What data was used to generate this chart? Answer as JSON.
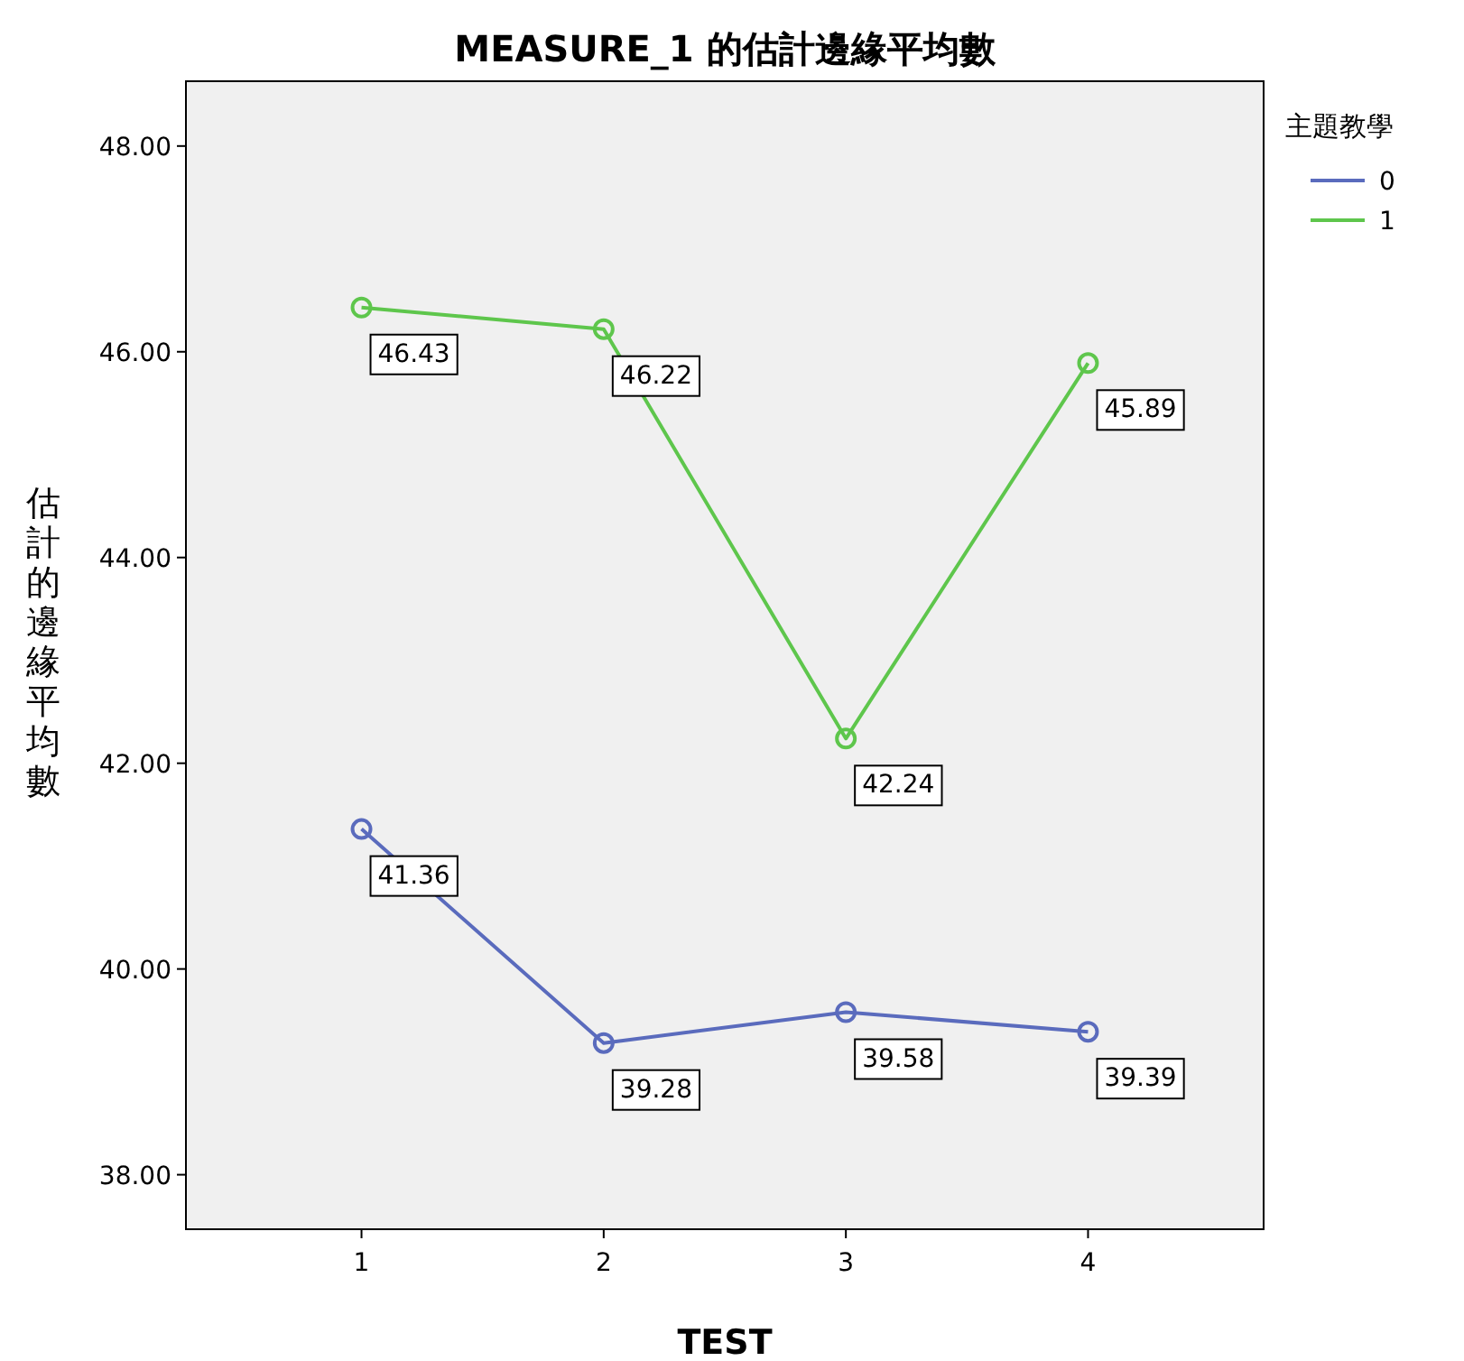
{
  "chart_data": {
    "type": "line",
    "title": "MEASURE_1 的估計邊緣平均數",
    "xlabel": "TEST",
    "ylabel": "估計的邊緣平均數",
    "legend_title": "主題教學",
    "categories": [
      "1",
      "2",
      "3",
      "4"
    ],
    "series": [
      {
        "name": "0",
        "color": "#5a6bbd",
        "values": [
          41.36,
          39.28,
          39.58,
          39.39
        ]
      },
      {
        "name": "1",
        "color": "#5ec64c",
        "values": [
          46.43,
          46.22,
          42.24,
          45.89
        ]
      }
    ],
    "ylim": [
      37.47,
      48.63
    ],
    "yticks": [
      {
        "value": 38,
        "label": "38.00"
      },
      {
        "value": 40,
        "label": "40.00"
      },
      {
        "value": 42,
        "label": "42.00"
      },
      {
        "value": 44,
        "label": "44.00"
      },
      {
        "value": 46,
        "label": "46.00"
      },
      {
        "value": 48,
        "label": "48.00"
      }
    ],
    "marker": "circle",
    "data_labels": true,
    "legend": "top right"
  }
}
